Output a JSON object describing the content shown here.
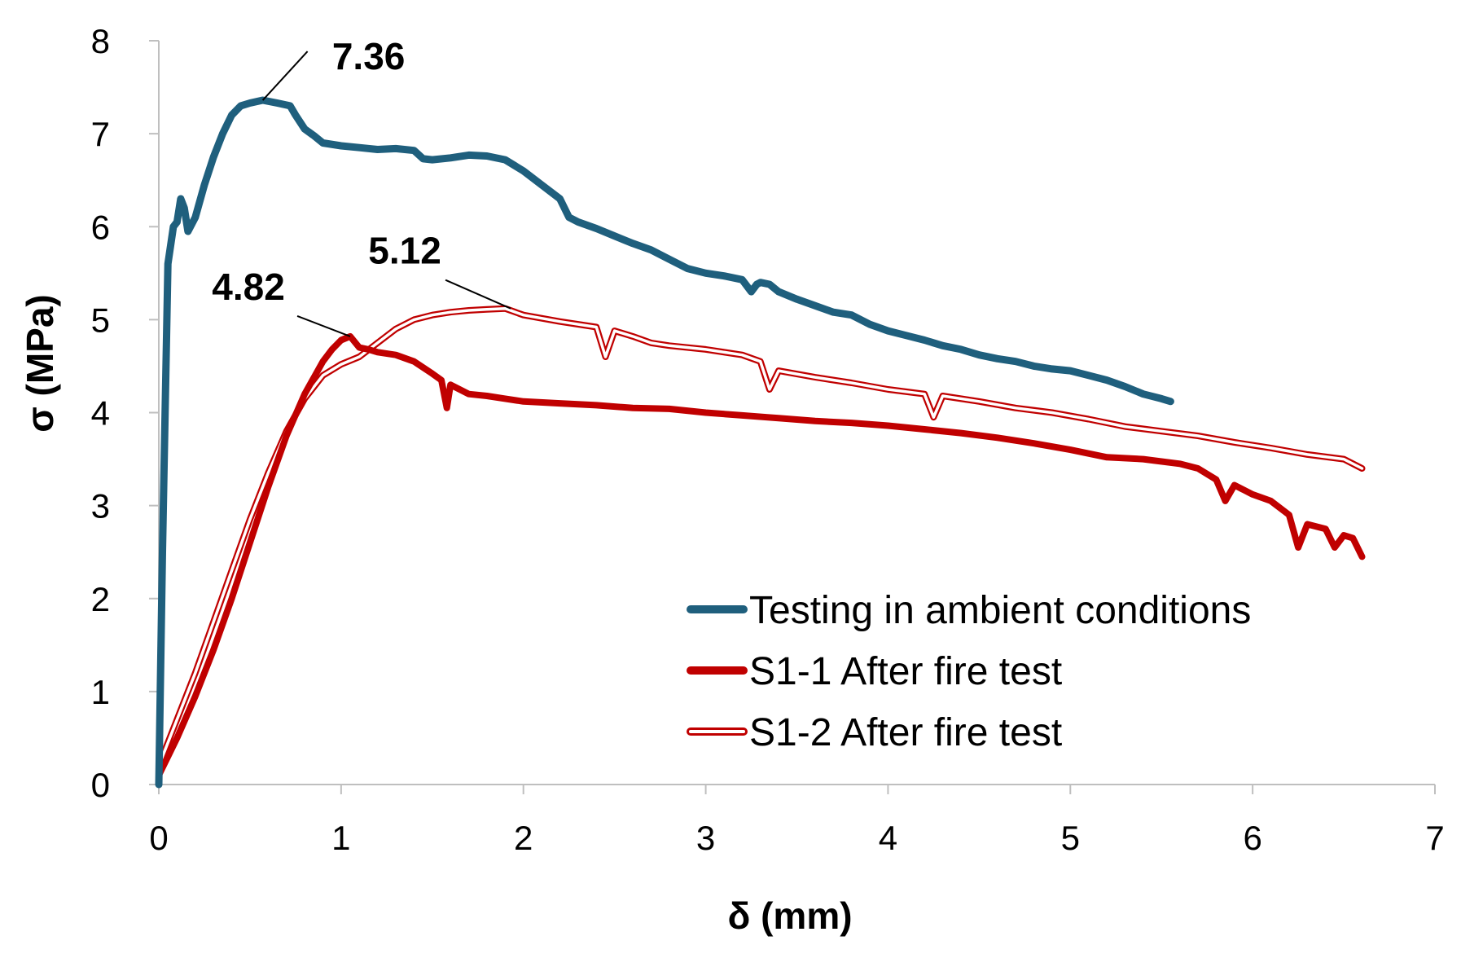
{
  "chart_data": {
    "type": "line",
    "title": "",
    "xlabel": "δ (mm)",
    "ylabel": "σ (MPa)",
    "xlim": [
      0,
      7
    ],
    "ylim": [
      0,
      8
    ],
    "xticks": [
      "0",
      "1",
      "2",
      "3",
      "4",
      "5",
      "6",
      "7"
    ],
    "yticks": [
      "0",
      "1",
      "2",
      "3",
      "4",
      "5",
      "6",
      "7",
      "8"
    ],
    "grid": false,
    "legend_position": "bottom-right",
    "series": [
      {
        "name": "Testing in ambient conditions",
        "color": "#1f5f7d",
        "style": "thick-solid",
        "points": [
          [
            0,
            0
          ],
          [
            0.02,
            2.5
          ],
          [
            0.05,
            5.6
          ],
          [
            0.08,
            6.0
          ],
          [
            0.1,
            6.05
          ],
          [
            0.12,
            6.3
          ],
          [
            0.14,
            6.2
          ],
          [
            0.16,
            5.95
          ],
          [
            0.2,
            6.1
          ],
          [
            0.25,
            6.45
          ],
          [
            0.3,
            6.75
          ],
          [
            0.35,
            7.0
          ],
          [
            0.4,
            7.2
          ],
          [
            0.45,
            7.3
          ],
          [
            0.5,
            7.33
          ],
          [
            0.57,
            7.36
          ],
          [
            0.65,
            7.33
          ],
          [
            0.72,
            7.3
          ],
          [
            0.75,
            7.2
          ],
          [
            0.8,
            7.05
          ],
          [
            0.85,
            6.98
          ],
          [
            0.9,
            6.9
          ],
          [
            1.0,
            6.87
          ],
          [
            1.1,
            6.85
          ],
          [
            1.2,
            6.83
          ],
          [
            1.3,
            6.84
          ],
          [
            1.4,
            6.82
          ],
          [
            1.45,
            6.73
          ],
          [
            1.5,
            6.72
          ],
          [
            1.6,
            6.74
          ],
          [
            1.7,
            6.77
          ],
          [
            1.8,
            6.76
          ],
          [
            1.9,
            6.72
          ],
          [
            2.0,
            6.6
          ],
          [
            2.1,
            6.45
          ],
          [
            2.2,
            6.3
          ],
          [
            2.25,
            6.1
          ],
          [
            2.3,
            6.05
          ],
          [
            2.4,
            5.98
          ],
          [
            2.5,
            5.9
          ],
          [
            2.6,
            5.82
          ],
          [
            2.7,
            5.75
          ],
          [
            2.8,
            5.65
          ],
          [
            2.9,
            5.55
          ],
          [
            3.0,
            5.5
          ],
          [
            3.1,
            5.47
          ],
          [
            3.2,
            5.43
          ],
          [
            3.25,
            5.3
          ],
          [
            3.28,
            5.38
          ],
          [
            3.3,
            5.4
          ],
          [
            3.35,
            5.38
          ],
          [
            3.4,
            5.3
          ],
          [
            3.5,
            5.22
          ],
          [
            3.6,
            5.15
          ],
          [
            3.7,
            5.08
          ],
          [
            3.8,
            5.05
          ],
          [
            3.9,
            4.95
          ],
          [
            4.0,
            4.88
          ],
          [
            4.1,
            4.83
          ],
          [
            4.2,
            4.78
          ],
          [
            4.3,
            4.72
          ],
          [
            4.4,
            4.68
          ],
          [
            4.5,
            4.62
          ],
          [
            4.6,
            4.58
          ],
          [
            4.7,
            4.55
          ],
          [
            4.8,
            4.5
          ],
          [
            4.9,
            4.47
          ],
          [
            5.0,
            4.45
          ],
          [
            5.1,
            4.4
          ],
          [
            5.2,
            4.35
          ],
          [
            5.3,
            4.28
          ],
          [
            5.4,
            4.2
          ],
          [
            5.5,
            4.15
          ],
          [
            5.55,
            4.12
          ]
        ]
      },
      {
        "name": "S1-1 After fire test",
        "color": "#c00000",
        "style": "thick-solid",
        "points": [
          [
            0,
            0.1
          ],
          [
            0.1,
            0.5
          ],
          [
            0.2,
            0.95
          ],
          [
            0.3,
            1.45
          ],
          [
            0.4,
            2.0
          ],
          [
            0.5,
            2.6
          ],
          [
            0.6,
            3.2
          ],
          [
            0.7,
            3.75
          ],
          [
            0.8,
            4.2
          ],
          [
            0.9,
            4.55
          ],
          [
            0.95,
            4.68
          ],
          [
            1.0,
            4.78
          ],
          [
            1.05,
            4.82
          ],
          [
            1.1,
            4.7
          ],
          [
            1.15,
            4.68
          ],
          [
            1.2,
            4.65
          ],
          [
            1.3,
            4.62
          ],
          [
            1.4,
            4.55
          ],
          [
            1.5,
            4.42
          ],
          [
            1.55,
            4.35
          ],
          [
            1.58,
            4.05
          ],
          [
            1.6,
            4.3
          ],
          [
            1.7,
            4.2
          ],
          [
            1.8,
            4.18
          ],
          [
            1.9,
            4.15
          ],
          [
            2.0,
            4.12
          ],
          [
            2.2,
            4.1
          ],
          [
            2.4,
            4.08
          ],
          [
            2.6,
            4.05
          ],
          [
            2.8,
            4.04
          ],
          [
            3.0,
            4.0
          ],
          [
            3.2,
            3.97
          ],
          [
            3.4,
            3.94
          ],
          [
            3.6,
            3.91
          ],
          [
            3.8,
            3.89
          ],
          [
            4.0,
            3.86
          ],
          [
            4.2,
            3.82
          ],
          [
            4.4,
            3.78
          ],
          [
            4.6,
            3.73
          ],
          [
            4.8,
            3.67
          ],
          [
            5.0,
            3.6
          ],
          [
            5.2,
            3.52
          ],
          [
            5.4,
            3.5
          ],
          [
            5.6,
            3.45
          ],
          [
            5.7,
            3.4
          ],
          [
            5.8,
            3.28
          ],
          [
            5.85,
            3.05
          ],
          [
            5.9,
            3.22
          ],
          [
            6.0,
            3.12
          ],
          [
            6.1,
            3.05
          ],
          [
            6.2,
            2.9
          ],
          [
            6.25,
            2.55
          ],
          [
            6.3,
            2.8
          ],
          [
            6.4,
            2.75
          ],
          [
            6.45,
            2.55
          ],
          [
            6.5,
            2.68
          ],
          [
            6.55,
            2.65
          ],
          [
            6.6,
            2.45
          ]
        ]
      },
      {
        "name": "S1-2 After fire test",
        "color": "#c00000",
        "style": "hollow",
        "points": [
          [
            0,
            0.2
          ],
          [
            0.1,
            0.7
          ],
          [
            0.2,
            1.2
          ],
          [
            0.3,
            1.75
          ],
          [
            0.4,
            2.3
          ],
          [
            0.5,
            2.85
          ],
          [
            0.6,
            3.35
          ],
          [
            0.7,
            3.8
          ],
          [
            0.8,
            4.15
          ],
          [
            0.9,
            4.4
          ],
          [
            1.0,
            4.52
          ],
          [
            1.1,
            4.6
          ],
          [
            1.2,
            4.75
          ],
          [
            1.3,
            4.9
          ],
          [
            1.4,
            5.0
          ],
          [
            1.5,
            5.05
          ],
          [
            1.6,
            5.08
          ],
          [
            1.7,
            5.1
          ],
          [
            1.8,
            5.11
          ],
          [
            1.9,
            5.12
          ],
          [
            2.0,
            5.05
          ],
          [
            2.2,
            4.98
          ],
          [
            2.4,
            4.92
          ],
          [
            2.45,
            4.6
          ],
          [
            2.5,
            4.88
          ],
          [
            2.6,
            4.82
          ],
          [
            2.7,
            4.75
          ],
          [
            2.8,
            4.72
          ],
          [
            3.0,
            4.68
          ],
          [
            3.2,
            4.62
          ],
          [
            3.3,
            4.55
          ],
          [
            3.35,
            4.25
          ],
          [
            3.4,
            4.45
          ],
          [
            3.6,
            4.38
          ],
          [
            3.8,
            4.32
          ],
          [
            4.0,
            4.25
          ],
          [
            4.2,
            4.2
          ],
          [
            4.25,
            3.95
          ],
          [
            4.3,
            4.18
          ],
          [
            4.5,
            4.12
          ],
          [
            4.7,
            4.05
          ],
          [
            4.9,
            4.0
          ],
          [
            5.1,
            3.93
          ],
          [
            5.3,
            3.85
          ],
          [
            5.5,
            3.8
          ],
          [
            5.7,
            3.75
          ],
          [
            5.9,
            3.68
          ],
          [
            6.1,
            3.62
          ],
          [
            6.3,
            3.55
          ],
          [
            6.5,
            3.5
          ],
          [
            6.6,
            3.4
          ]
        ]
      }
    ],
    "annotations": [
      {
        "text": "7.36",
        "x": 0.57,
        "y": 7.36
      },
      {
        "text": "4.82",
        "x": 1.05,
        "y": 4.82
      },
      {
        "text": "5.12",
        "x": 1.93,
        "y": 5.12
      }
    ]
  }
}
